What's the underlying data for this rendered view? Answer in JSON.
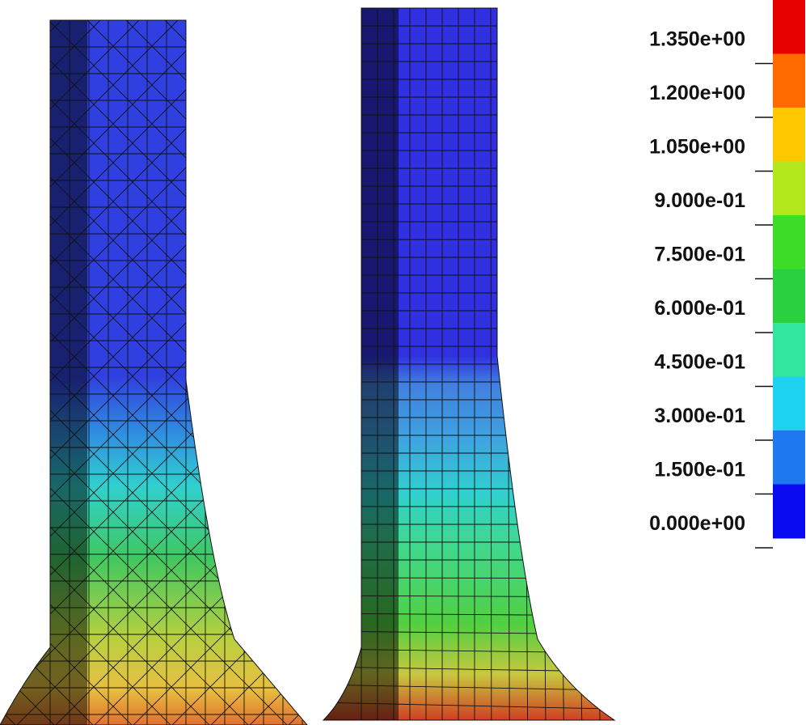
{
  "legend": {
    "labels": [
      "1.350e+00",
      "1.200e+00",
      "1.050e+00",
      "9.000e-01",
      "7.500e-01",
      "6.000e-01",
      "4.500e-01",
      "3.000e-01",
      "1.500e-01",
      "0.000e+00"
    ],
    "colors": [
      "#e80000",
      "#ff6a00",
      "#ffc800",
      "#b4e61e",
      "#3cdc28",
      "#2ad040",
      "#32e6a0",
      "#1ed2f0",
      "#1e78f0",
      "#0a0af0"
    ]
  }
}
